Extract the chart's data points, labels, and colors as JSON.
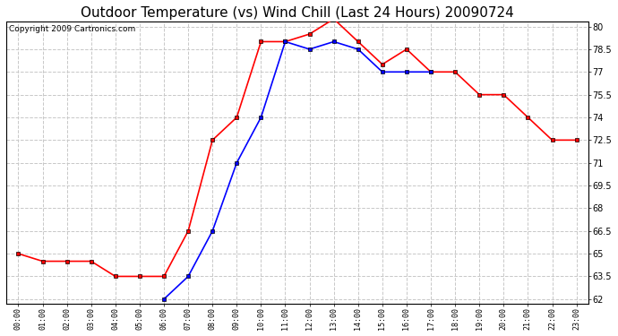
{
  "title": "Outdoor Temperature (vs) Wind Chill (Last 24 Hours) 20090724",
  "copyright": "Copyright 2009 Cartronics.com",
  "hours": [
    "00:00",
    "01:00",
    "02:00",
    "03:00",
    "04:00",
    "05:00",
    "06:00",
    "07:00",
    "08:00",
    "09:00",
    "10:00",
    "11:00",
    "12:00",
    "13:00",
    "14:00",
    "15:00",
    "16:00",
    "17:00",
    "18:00",
    "19:00",
    "20:00",
    "21:00",
    "22:00",
    "23:00"
  ],
  "temp": [
    65.0,
    64.5,
    64.5,
    64.5,
    63.5,
    63.5,
    63.5,
    66.5,
    72.5,
    74.0,
    79.0,
    79.0,
    79.5,
    80.5,
    79.0,
    77.5,
    78.5,
    77.0,
    77.0,
    75.5,
    75.5,
    74.0,
    72.5,
    72.5
  ],
  "wind_chill": [
    null,
    null,
    null,
    null,
    null,
    null,
    62.0,
    63.5,
    66.5,
    71.0,
    74.0,
    79.0,
    78.5,
    79.0,
    78.5,
    77.0,
    77.0,
    77.0,
    null,
    null,
    null,
    null,
    null,
    null
  ],
  "temp_color": "#ff0000",
  "wind_chill_color": "#0000ff",
  "background_color": "#ffffff",
  "plot_bg_color": "#ffffff",
  "grid_color": "#c8c8c8",
  "ylim_min": 62.0,
  "ylim_max": 80.0,
  "yticks": [
    62.0,
    63.5,
    65.0,
    66.5,
    68.0,
    69.5,
    71.0,
    72.5,
    74.0,
    75.5,
    77.0,
    78.5,
    80.0
  ],
  "title_fontsize": 11,
  "copyright_fontsize": 6.5,
  "marker_size": 3,
  "line_width": 1.2
}
